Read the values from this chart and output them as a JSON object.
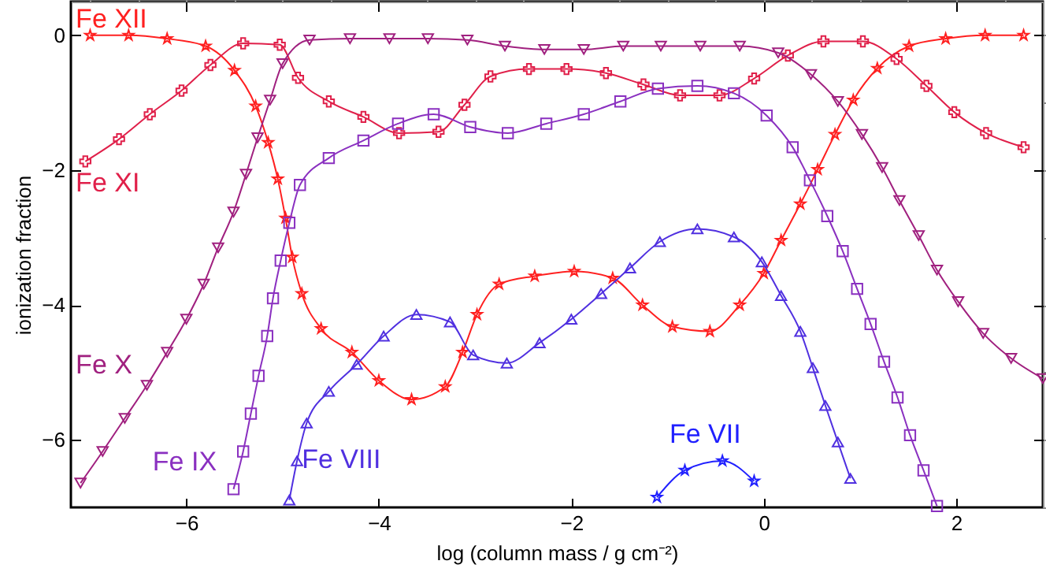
{
  "chart_data": {
    "type": "line",
    "xlabel": "log (column mass / g cm⁻²)",
    "ylabel": "ionization fraction",
    "xlim": [
      -7.2,
      2.9
    ],
    "ylim": [
      -7,
      0.5
    ],
    "xticks": [
      -6,
      -4,
      -2,
      0,
      2
    ],
    "yticks": [
      -6,
      -4,
      -2,
      0
    ],
    "grid": false,
    "series": [
      {
        "name": "Fe XII",
        "color": "#ff2020",
        "marker": "star",
        "x": [
          -7.0,
          -6.6,
          -6.2,
          -5.8,
          -5.5,
          -5.28,
          -5.15,
          -5.05,
          -4.97,
          -4.9,
          -4.8,
          -4.6,
          -4.28,
          -4.0,
          -3.66,
          -3.31,
          -3.13,
          -2.98,
          -2.75,
          -2.38,
          -1.97,
          -1.57,
          -1.26,
          -0.95,
          -0.56,
          -0.25,
          0.0,
          0.18,
          0.38,
          0.56,
          0.74,
          0.93,
          1.18,
          1.51,
          1.89,
          2.3,
          2.7
        ],
        "values": [
          0,
          0,
          -0.05,
          -0.16,
          -0.52,
          -1.05,
          -1.59,
          -2.13,
          -2.71,
          -3.29,
          -3.83,
          -4.35,
          -4.7,
          -5.12,
          -5.4,
          -5.21,
          -4.7,
          -4.14,
          -3.69,
          -3.57,
          -3.5,
          -3.6,
          -4.0,
          -4.32,
          -4.39,
          -4.0,
          -3.53,
          -3.04,
          -2.5,
          -1.99,
          -1.47,
          -0.96,
          -0.49,
          -0.16,
          -0.05,
          0,
          0
        ]
      },
      {
        "name": "Fe XI",
        "color": "#e0204a",
        "marker": "cross",
        "x": [
          -7.05,
          -6.7,
          -6.38,
          -6.05,
          -5.75,
          -5.41,
          -5.03,
          -4.84,
          -4.52,
          -4.16,
          -3.79,
          -3.38,
          -3.11,
          -2.84,
          -2.44,
          -2.05,
          -1.64,
          -1.25,
          -0.87,
          -0.46,
          -0.1,
          0.25,
          0.62,
          1.03,
          1.38,
          1.69,
          1.98,
          2.31,
          2.7
        ],
        "values": [
          -1.87,
          -1.54,
          -1.17,
          -0.82,
          -0.44,
          -0.12,
          -0.14,
          -0.63,
          -0.98,
          -1.21,
          -1.45,
          -1.43,
          -1.03,
          -0.61,
          -0.5,
          -0.5,
          -0.56,
          -0.73,
          -0.89,
          -0.89,
          -0.64,
          -0.3,
          -0.09,
          -0.09,
          -0.35,
          -0.75,
          -1.14,
          -1.45,
          -1.66
        ]
      },
      {
        "name": "Fe X",
        "color": "#a0207f",
        "marker": "triangle-down",
        "x": [
          -7.1,
          -6.87,
          -6.64,
          -6.41,
          -6.2,
          -6.0,
          -5.82,
          -5.67,
          -5.51,
          -5.38,
          -5.26,
          -5.13,
          -5.0,
          -4.72,
          -4.3,
          -3.89,
          -3.49,
          -3.08,
          -2.69,
          -2.28,
          -1.87,
          -1.46,
          -1.07,
          -0.66,
          -0.25,
          0.15,
          0.49,
          0.77,
          1.02,
          1.23,
          1.41,
          1.61,
          1.8,
          2.02,
          2.28,
          2.57,
          2.9
        ],
        "values": [
          -6.64,
          -6.17,
          -5.68,
          -5.19,
          -4.7,
          -4.21,
          -3.69,
          -3.15,
          -2.62,
          -2.06,
          -1.52,
          -0.96,
          -0.42,
          -0.07,
          -0.05,
          -0.05,
          -0.05,
          -0.07,
          -0.16,
          -0.21,
          -0.21,
          -0.16,
          -0.16,
          -0.16,
          -0.16,
          -0.26,
          -0.58,
          -0.98,
          -1.47,
          -1.96,
          -2.45,
          -2.97,
          -3.48,
          -3.95,
          -4.42,
          -4.79,
          -5.09
        ]
      },
      {
        "name": "Fe IX",
        "color": "#8a30c0",
        "marker": "square",
        "x": [
          -5.51,
          -5.41,
          -5.33,
          -5.25,
          -5.16,
          -5.1,
          -5.02,
          -4.93,
          -4.82,
          -4.52,
          -4.16,
          -3.8,
          -3.43,
          -3.05,
          -2.66,
          -2.26,
          -1.87,
          -1.49,
          -1.1,
          -0.69,
          -0.31,
          0.03,
          0.3,
          0.48,
          0.66,
          0.82,
          0.97,
          1.11,
          1.25,
          1.39,
          1.52,
          1.66,
          1.8
        ],
        "values": [
          -6.73,
          -6.17,
          -5.61,
          -5.05,
          -4.46,
          -3.9,
          -3.34,
          -2.78,
          -2.22,
          -1.82,
          -1.56,
          -1.31,
          -1.17,
          -1.36,
          -1.45,
          -1.31,
          -1.17,
          -0.98,
          -0.79,
          -0.75,
          -0.86,
          -1.19,
          -1.66,
          -2.15,
          -2.68,
          -3.2,
          -3.76,
          -4.28,
          -4.84,
          -5.37,
          -5.93,
          -6.45,
          -6.98
        ]
      },
      {
        "name": "Fe VIII",
        "color": "#5030e0",
        "marker": "triangle",
        "x": [
          -4.93,
          -4.85,
          -4.75,
          -4.52,
          -4.23,
          -3.95,
          -3.61,
          -3.26,
          -3.02,
          -2.67,
          -2.33,
          -2.0,
          -1.69,
          -1.39,
          -1.08,
          -0.69,
          -0.31,
          -0.02,
          0.18,
          0.38,
          0.51,
          0.64,
          0.77,
          0.9
        ],
        "values": [
          -6.89,
          -6.31,
          -5.75,
          -5.28,
          -4.88,
          -4.46,
          -4.14,
          -4.25,
          -4.74,
          -4.86,
          -4.56,
          -4.21,
          -3.83,
          -3.45,
          -3.06,
          -2.87,
          -2.99,
          -3.36,
          -3.86,
          -4.39,
          -4.93,
          -5.49,
          -6.03,
          -6.57
        ]
      },
      {
        "name": "Fe VII",
        "color": "#2020ff",
        "marker": "star",
        "x": [
          -1.11,
          -0.82,
          -0.43,
          -0.1
        ],
        "values": [
          -6.85,
          -6.45,
          -6.31,
          -6.61
        ]
      }
    ]
  }
}
